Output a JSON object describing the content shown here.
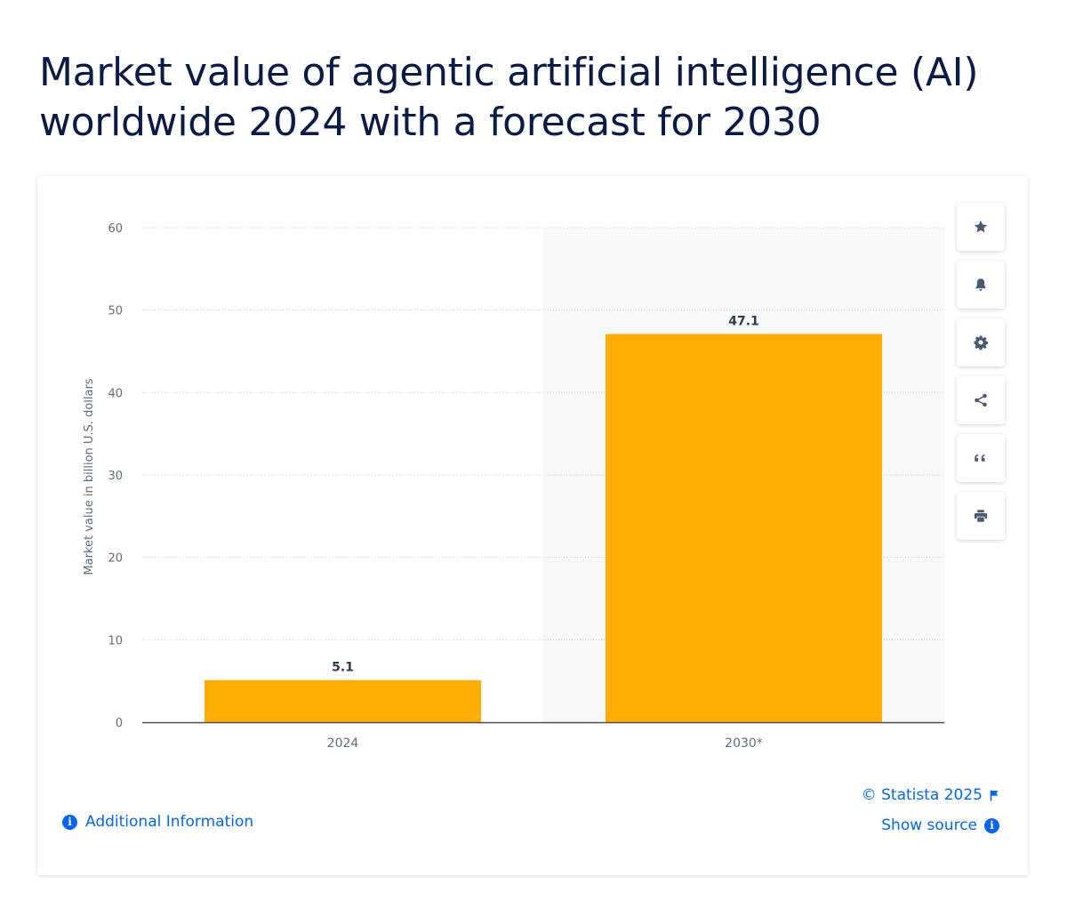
{
  "title": "Market value of agentic artificial intelligence (AI) worldwide 2024 with a forecast for 2030",
  "colors": {
    "bar": "#FFAD00",
    "title": "#0c1b45",
    "link": "#0666e5",
    "forecast_shade": "#f7f8fa"
  },
  "chart_data": {
    "type": "bar",
    "categories": [
      "2024",
      "2030*"
    ],
    "values": [
      5.1,
      47.1
    ],
    "data_labels": [
      "5.1",
      "47.1"
    ],
    "ylabel": "Market value in billion U.S. dollars",
    "xlabel": "",
    "ylim": [
      0,
      60
    ],
    "yticks": [
      0,
      10,
      20,
      30,
      40,
      50,
      60
    ],
    "grid": true,
    "forecast_shaded_category": "2030*"
  },
  "toolbar": {
    "icons": [
      "star-icon",
      "bell-icon",
      "gear-icon",
      "share-icon",
      "quote-icon",
      "print-icon"
    ]
  },
  "footer": {
    "additional_info": "Additional Information",
    "copyright": "© Statista 2025",
    "show_source": "Show source",
    "info_glyph": "i"
  }
}
